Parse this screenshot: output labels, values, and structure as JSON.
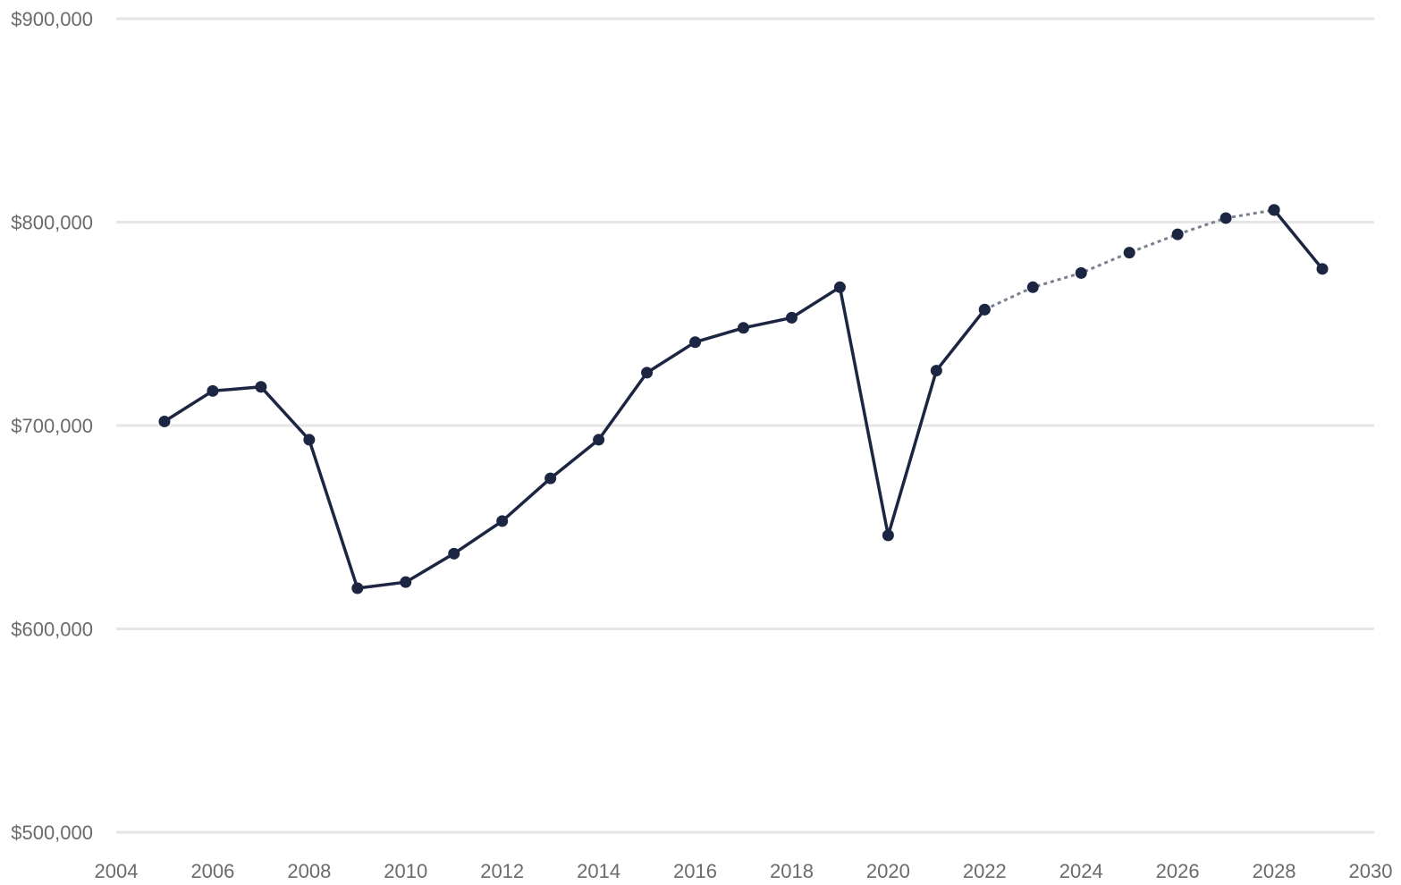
{
  "chart_data": {
    "type": "line",
    "title": "",
    "xlabel": "",
    "ylabel": "",
    "xlim": [
      2004,
      2030
    ],
    "ylim": [
      500000,
      900000
    ],
    "grid": true,
    "x_ticks": [
      2004,
      2006,
      2008,
      2010,
      2012,
      2014,
      2016,
      2018,
      2020,
      2022,
      2024,
      2026,
      2028,
      2030
    ],
    "y_ticks": [
      500000,
      600000,
      700000,
      800000,
      900000
    ],
    "x_tick_labels": [
      "2004",
      "2006",
      "2008",
      "2010",
      "2012",
      "2014",
      "2016",
      "2018",
      "2020",
      "2022",
      "2024",
      "2026",
      "2028",
      "2030"
    ],
    "y_tick_labels": [
      "$500,000",
      "$600,000",
      "$700,000",
      "$800,000",
      "$900,000"
    ],
    "series": [
      {
        "style": "solid",
        "color": "#1c2541",
        "x": [
          2005,
          2006,
          2007,
          2008,
          2009,
          2010,
          2011,
          2012,
          2013,
          2014,
          2015,
          2016,
          2017,
          2018,
          2019,
          2020,
          2021,
          2022
        ],
        "values": [
          702000,
          717000,
          719000,
          693000,
          620000,
          623000,
          637000,
          653000,
          674000,
          693000,
          726000,
          741000,
          748000,
          753000,
          768000,
          646000,
          727000,
          757000
        ]
      },
      {
        "style": "dashed",
        "color": "#1c2541",
        "x": [
          2022,
          2023,
          2024,
          2025,
          2026,
          2027,
          2028
        ],
        "values": [
          757000,
          768000,
          775000,
          785000,
          794000,
          802000,
          806000
        ]
      },
      {
        "style": "solid",
        "color": "#1c2541",
        "x": [
          2028,
          2029
        ],
        "values": [
          806000,
          777000
        ]
      }
    ]
  }
}
